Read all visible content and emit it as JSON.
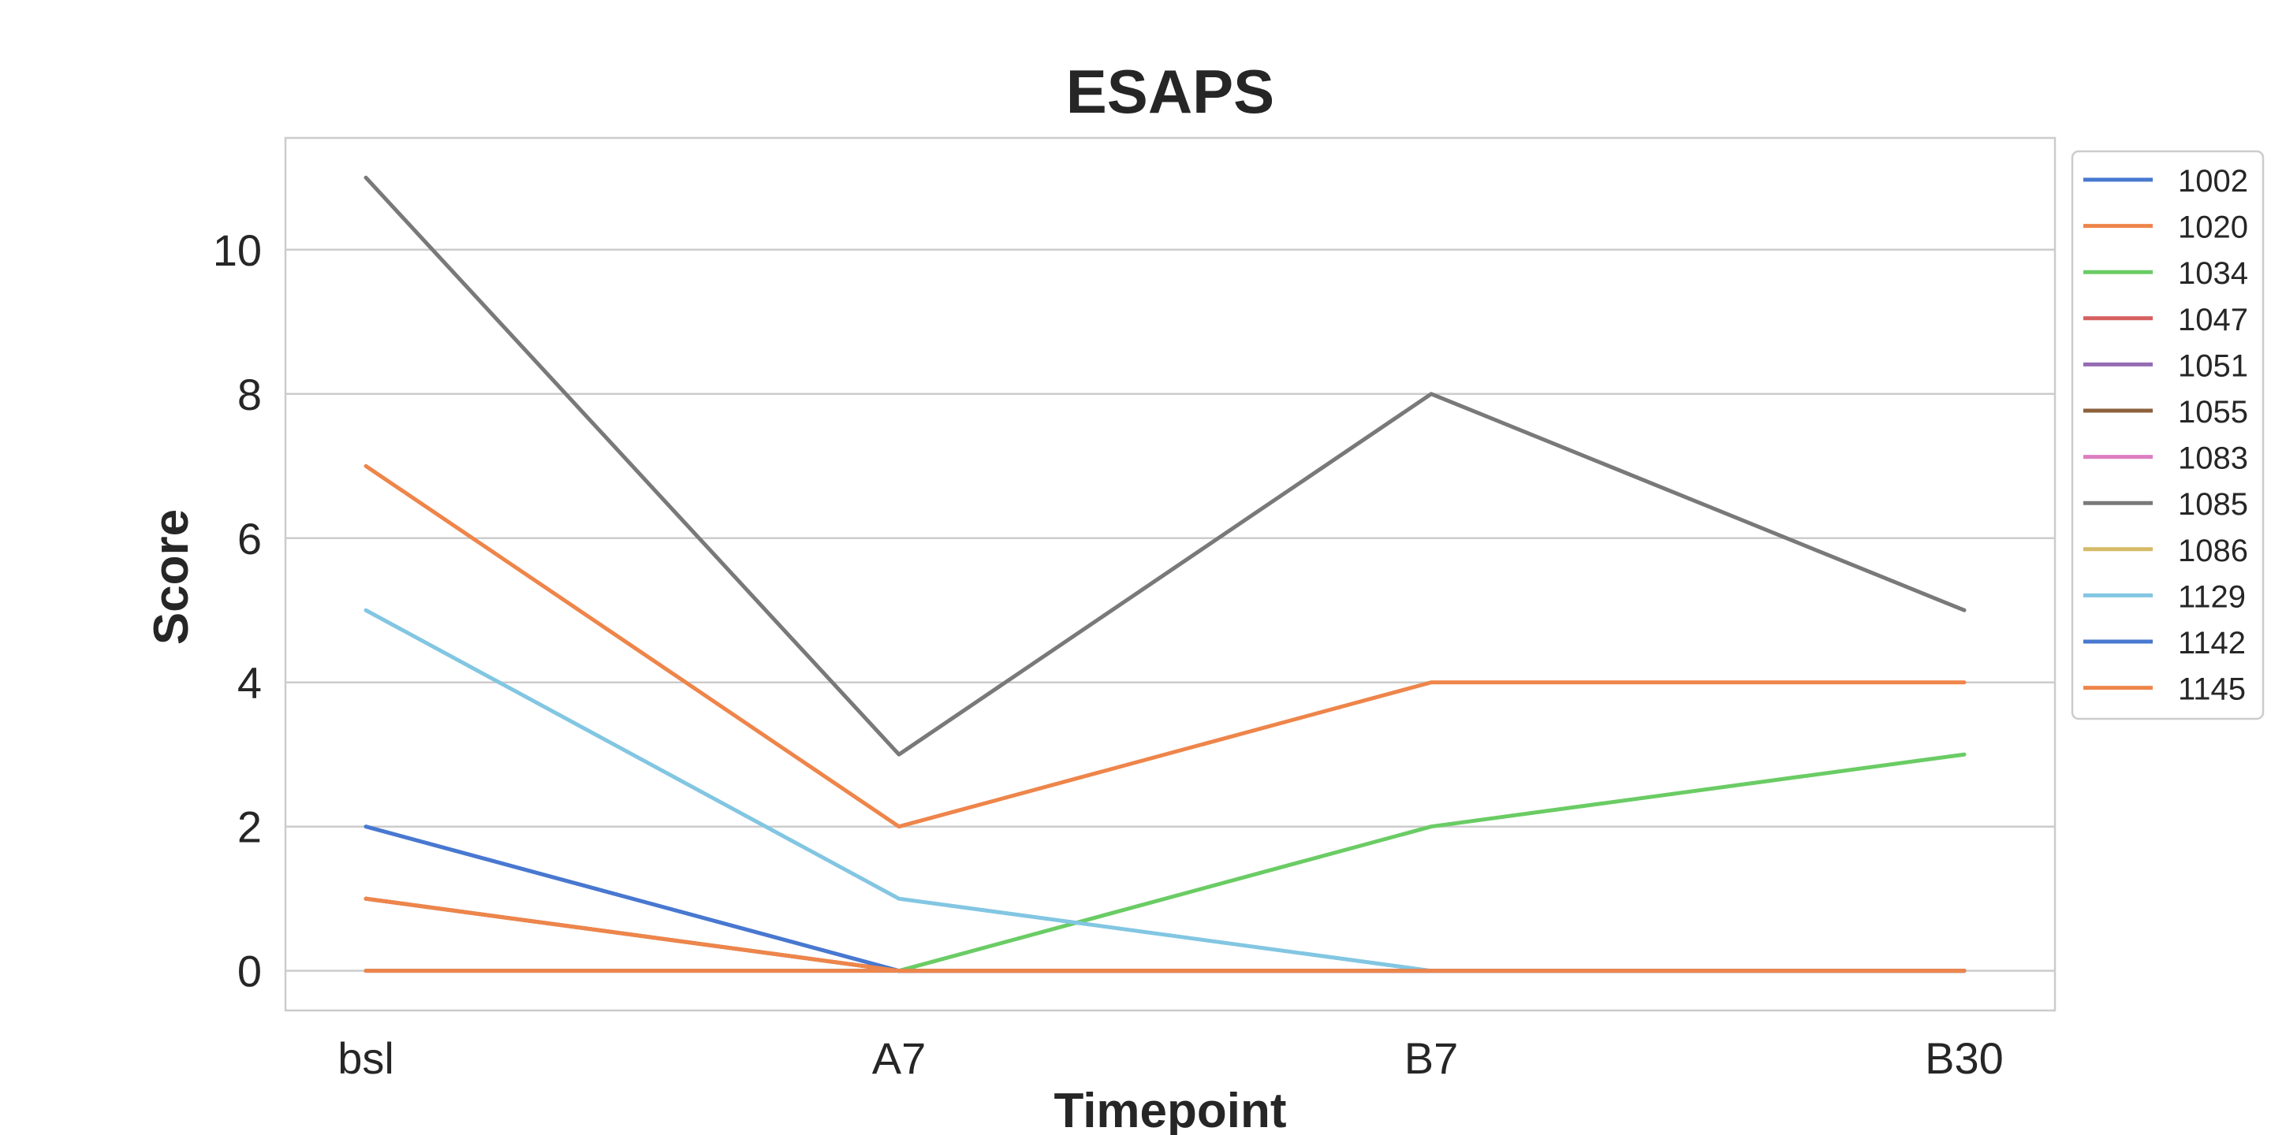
{
  "chart_data": {
    "type": "line",
    "title": "ESAPS",
    "xlabel": "Timepoint",
    "ylabel": "Score",
    "categories": [
      "bsl",
      "A7",
      "B7",
      "B30"
    ],
    "ylim": [
      -0.55,
      11.55
    ],
    "yticks": [
      0,
      2,
      4,
      6,
      8,
      10
    ],
    "grid": true,
    "legend_position": "upper-right-outside",
    "series": [
      {
        "name": "1002",
        "color": "#4878d0",
        "values": [
          0,
          0,
          0,
          0
        ]
      },
      {
        "name": "1020",
        "color": "#ee854a",
        "values": [
          0,
          0,
          0,
          0
        ]
      },
      {
        "name": "1034",
        "color": "#6acc64",
        "values": [
          null,
          0,
          2,
          3
        ]
      },
      {
        "name": "1047",
        "color": "#d65f5f",
        "values": [
          1,
          0,
          0,
          0
        ]
      },
      {
        "name": "1051",
        "color": "#956cb4",
        "values": [
          1,
          0,
          0,
          0
        ]
      },
      {
        "name": "1055",
        "color": "#8c613c",
        "values": [
          1,
          0,
          0,
          0
        ]
      },
      {
        "name": "1083",
        "color": "#dc7ec0",
        "values": [
          1,
          0,
          0,
          0
        ]
      },
      {
        "name": "1085",
        "color": "#797979",
        "values": [
          11,
          3,
          8,
          5
        ]
      },
      {
        "name": "1086",
        "color": "#d5bb67",
        "values": [
          1,
          0,
          0,
          0
        ]
      },
      {
        "name": "1129",
        "color": "#82c6e2",
        "values": [
          5,
          1,
          0,
          0
        ]
      },
      {
        "name": "1142",
        "color": "#4878d0",
        "values": [
          2,
          0,
          0,
          0
        ]
      },
      {
        "name": "1145",
        "color": "#ee854a",
        "values": [
          7,
          2,
          4,
          4
        ]
      }
    ],
    "extra_series_1145b": {
      "name": "",
      "color": "#ee854a",
      "values": [
        1,
        0,
        0,
        0
      ]
    }
  }
}
